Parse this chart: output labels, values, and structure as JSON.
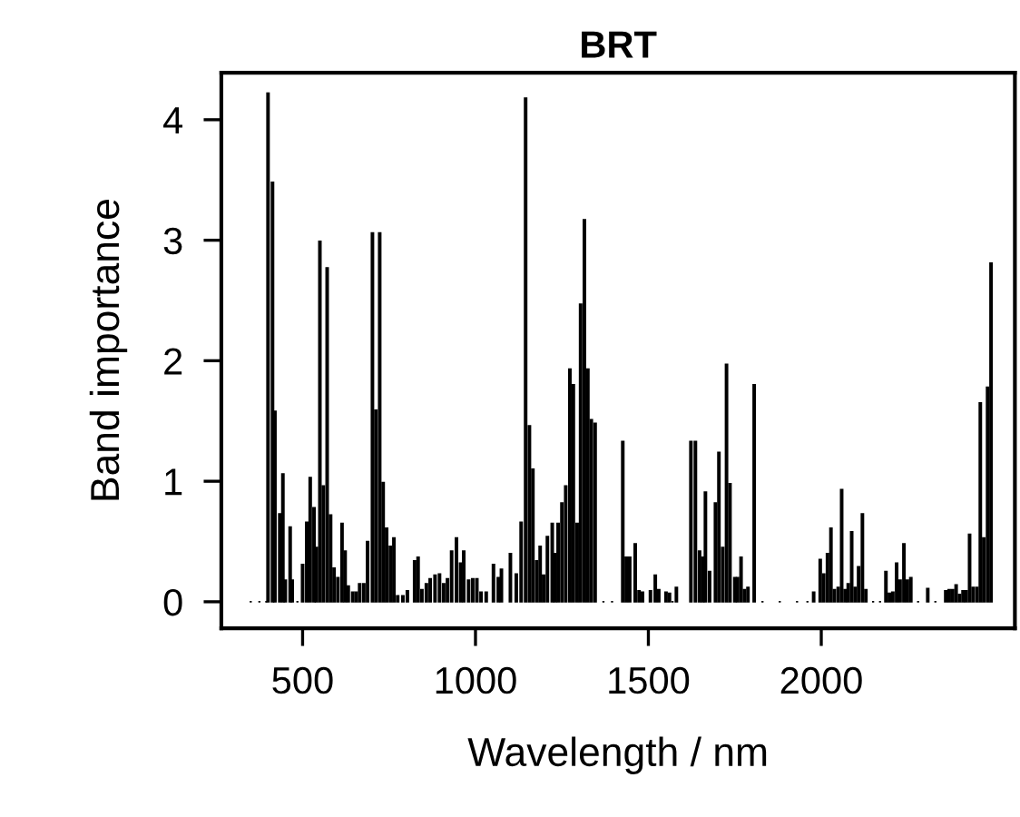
{
  "chart_data": {
    "type": "bar",
    "title": "BRT",
    "xlabel": "Wavelength / nm",
    "ylabel": "Band importance",
    "x": [
      350,
      375,
      395,
      400,
      413,
      420,
      434,
      443,
      450,
      464,
      470,
      485,
      500,
      512,
      522,
      533,
      540,
      550,
      560,
      571,
      581,
      591,
      602,
      614,
      623,
      632,
      645,
      655,
      665,
      677,
      688,
      702,
      712,
      723,
      733,
      743,
      754,
      764,
      775,
      790,
      803,
      824,
      834,
      845,
      858,
      869,
      883,
      896,
      908,
      919,
      931,
      945,
      957,
      966,
      980,
      992,
      1004,
      1016,
      1031,
      1052,
      1066,
      1075,
      1101,
      1118,
      1132,
      1145,
      1156,
      1166,
      1177,
      1187,
      1197,
      1208,
      1222,
      1230,
      1239,
      1250,
      1261,
      1273,
      1283,
      1294,
      1304,
      1315,
      1325,
      1335,
      1346,
      1370,
      1395,
      1426,
      1436,
      1446,
      1462,
      1473,
      1483,
      1506,
      1520,
      1530,
      1551,
      1561,
      1570,
      1581,
      1623,
      1636,
      1648,
      1657,
      1665,
      1677,
      1694,
      1704,
      1715,
      1726,
      1736,
      1750,
      1758,
      1768,
      1778,
      1788,
      1806,
      1830,
      1880,
      1930,
      1960,
      1978,
      1997,
      2007,
      2018,
      2028,
      2038,
      2049,
      2059,
      2069,
      2078,
      2088,
      2098,
      2108,
      2119,
      2129,
      2150,
      2170,
      2187,
      2197,
      2207,
      2218,
      2228,
      2239,
      2249,
      2259,
      2280,
      2308,
      2330,
      2360,
      2370,
      2380,
      2390,
      2400,
      2410,
      2419,
      2429,
      2439,
      2450,
      2460,
      2470,
      2481,
      2491
    ],
    "values": [
      0,
      0,
      0,
      4.22,
      3.48,
      1.58,
      0.73,
      1.06,
      0.18,
      0.62,
      0.18,
      0,
      0.31,
      0.66,
      1.03,
      0.78,
      0.45,
      2.99,
      0.96,
      2.77,
      0.72,
      0.28,
      0.2,
      0.65,
      0.42,
      0.13,
      0.08,
      0.08,
      0.15,
      0.15,
      0.5,
      3.06,
      1.59,
      3.06,
      0.99,
      0.61,
      0.46,
      0.53,
      0.05,
      0.05,
      0.09,
      0.34,
      0.37,
      0.1,
      0.15,
      0.19,
      0.22,
      0.23,
      0.15,
      0.19,
      0.42,
      0.53,
      0.32,
      0.42,
      0.18,
      0.19,
      0.19,
      0.08,
      0.08,
      0.31,
      0.2,
      0.27,
      0.4,
      0.23,
      0.66,
      4.18,
      1.46,
      1.1,
      0.34,
      0.46,
      0.22,
      0.54,
      0.65,
      0.4,
      0.65,
      0.82,
      0.96,
      1.93,
      1.8,
      0.65,
      2.47,
      3.17,
      1.93,
      1.51,
      1.48,
      0,
      0,
      1.33,
      0.37,
      0.37,
      0.48,
      0.09,
      0.08,
      0.09,
      0.22,
      0.1,
      0.08,
      0.07,
      0,
      0.12,
      1.33,
      1.33,
      0.42,
      0.37,
      0.91,
      0.25,
      0.82,
      1.24,
      0.45,
      1.97,
      0.98,
      0.2,
      0.2,
      0.37,
      0.1,
      0.12,
      1.8,
      0,
      0,
      0,
      0,
      0.08,
      0.35,
      0.23,
      0.4,
      0.61,
      0.1,
      0.12,
      0.93,
      0.1,
      0.15,
      0.58,
      0.12,
      0.29,
      0.73,
      0.1,
      0,
      0,
      0.25,
      0.07,
      0.08,
      0.32,
      0.18,
      0.48,
      0.18,
      0.2,
      0,
      0.11,
      0,
      0.09,
      0.1,
      0.1,
      0.14,
      0.06,
      0.09,
      0.09,
      0.56,
      0.12,
      0.12,
      1.65,
      0.53,
      1.78,
      2.81
    ],
    "color": "#000000",
    "xlim": [
      265,
      2560
    ],
    "xticks": [
      500,
      1000,
      1500,
      2000
    ],
    "ylim": [
      -0.22,
      4.39
    ],
    "yticks": [
      0,
      1,
      2,
      3,
      4
    ],
    "grid": false,
    "legend": false
  }
}
